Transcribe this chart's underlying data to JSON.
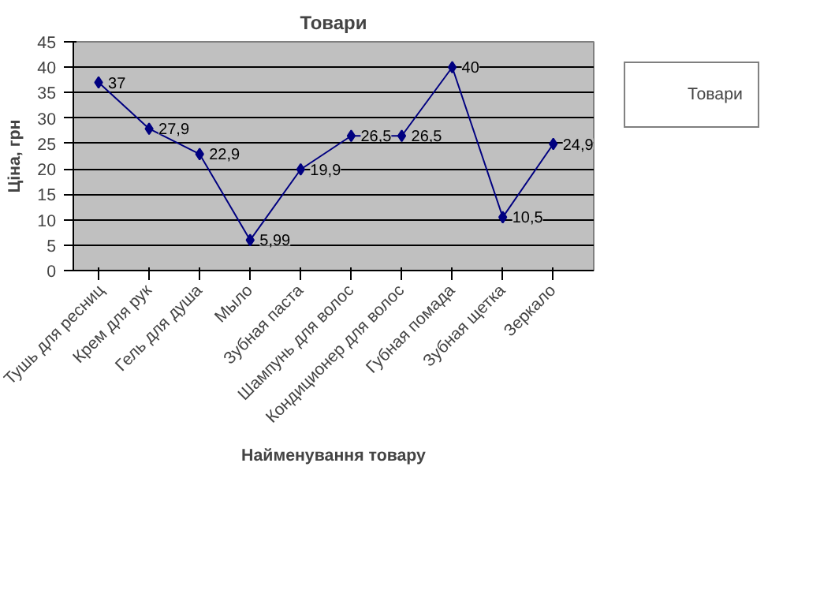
{
  "chart_data": {
    "type": "line",
    "title": "Товари",
    "xlabel": "Найменування товару",
    "ylabel": "Ціна, грн",
    "categories": [
      "Тушь для ресниц",
      "Крем для рук",
      "Гель для душа",
      "Мыло",
      "Зубная паста",
      "Шампунь для волос",
      "Кондиционер для волос",
      "Губная помада",
      "Зубная щетка",
      "Зеркало"
    ],
    "series": [
      {
        "name": "Товари",
        "color": "#000080",
        "values": [
          37,
          27.9,
          22.9,
          5.99,
          19.9,
          26.5,
          26.5,
          40,
          10.5,
          24.9
        ],
        "value_labels": [
          "37",
          "27,9",
          "22,9",
          "5,99",
          "19,9",
          "26,5",
          "26,5",
          "40",
          "10,5",
          "24,9"
        ]
      }
    ],
    "ylim": [
      0,
      45
    ],
    "yticks": [
      0,
      5,
      10,
      15,
      20,
      25,
      30,
      35,
      40,
      45
    ],
    "grid": "y",
    "legend": "right",
    "marker": "diamond"
  }
}
